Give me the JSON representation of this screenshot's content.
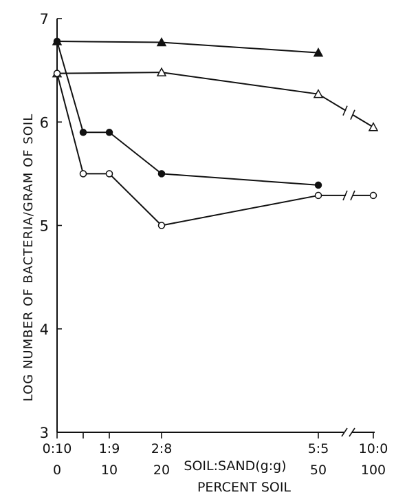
{
  "chart_data": {
    "type": "line",
    "ylabel": "LOG NUMBER OF BACTERIA/GRAM OF SOIL",
    "xlabel_ratio": "SOIL:SAND(g:g)",
    "xlabel_percent": "PERCENT SOIL",
    "ylim": [
      3,
      7
    ],
    "yticks": [
      "3",
      "4",
      "5",
      "6",
      "7"
    ],
    "xticks_ratio": [
      {
        "x": 0,
        "label": "0:10"
      },
      {
        "x": 10,
        "label": "1:9"
      },
      {
        "x": 20,
        "label": "2:8"
      },
      {
        "x": 50,
        "label": "5:5"
      },
      {
        "x": 100,
        "label": "10:0"
      }
    ],
    "xticks_percent": [
      {
        "x": 0,
        "label": "0"
      },
      {
        "x": 10,
        "label": "10"
      },
      {
        "x": 20,
        "label": "20"
      },
      {
        "x": 50,
        "label": "50"
      },
      {
        "x": 100,
        "label": "100"
      }
    ],
    "axis_break_between": [
      50,
      100
    ],
    "grid": false,
    "series": [
      {
        "marker": "filled-triangle",
        "x": [
          0,
          20,
          50
        ],
        "y": [
          6.78,
          6.77,
          6.67
        ]
      },
      {
        "marker": "open-triangle",
        "x": [
          0,
          20,
          50,
          100
        ],
        "y": [
          6.47,
          6.48,
          6.27,
          5.95
        ]
      },
      {
        "marker": "filled-circle",
        "x": [
          0,
          5,
          10,
          20,
          50
        ],
        "y": [
          6.78,
          5.9,
          5.9,
          5.5,
          5.39
        ]
      },
      {
        "marker": "open-circle",
        "x": [
          0,
          5,
          10,
          20,
          50,
          100
        ],
        "y": [
          6.47,
          5.5,
          5.5,
          5.0,
          5.29,
          5.29
        ]
      }
    ]
  }
}
